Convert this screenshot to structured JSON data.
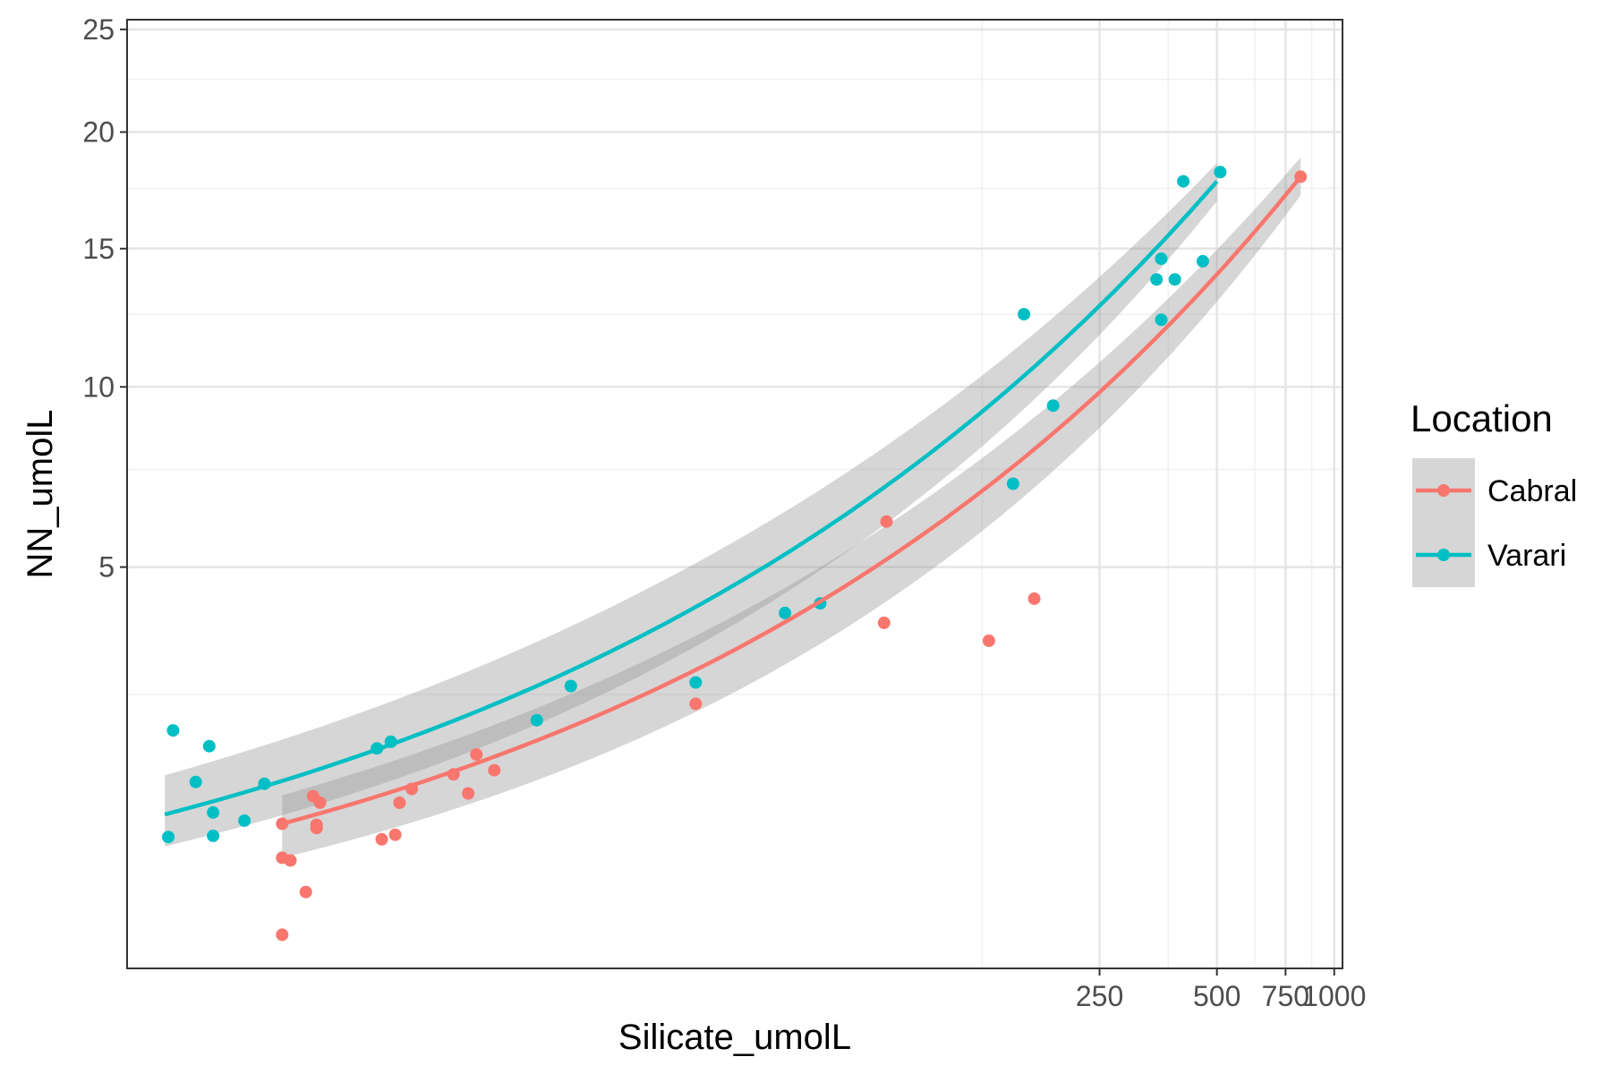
{
  "chart_data": {
    "type": "scatter",
    "xlabel": "Silicate_umolL",
    "ylabel": "NN_umolL",
    "x_scale": "log10",
    "y_scale": "sqrt",
    "xlim": [
      0.8,
      1050
    ],
    "ylim": [
      0.03,
      25.5
    ],
    "x_ticks": [
      250,
      500,
      750,
      1000
    ],
    "x_tick_labels": [
      "250",
      "500",
      "750",
      "1000"
    ],
    "y_ticks": [
      5,
      10,
      15,
      20,
      25
    ],
    "y_tick_labels": [
      "5",
      "10",
      "15",
      "20",
      "25"
    ],
    "grid": true,
    "legend": {
      "title": "Location",
      "position": "right"
    },
    "series": [
      {
        "name": "Cabral",
        "color": "#F8766D",
        "points": [
          {
            "x": 2.0,
            "y": 0.84
          },
          {
            "x": 2.0,
            "y": 0.55
          },
          {
            "x": 2.1,
            "y": 0.53
          },
          {
            "x": 2.4,
            "y": 1.12
          },
          {
            "x": 2.45,
            "y": 0.8
          },
          {
            "x": 2.45,
            "y": 0.83
          },
          {
            "x": 2.5,
            "y": 1.05
          },
          {
            "x": 2.3,
            "y": 0.32
          },
          {
            "x": 2.0,
            "y": 0.12
          },
          {
            "x": 3.6,
            "y": 0.7
          },
          {
            "x": 3.9,
            "y": 0.74
          },
          {
            "x": 4.0,
            "y": 1.05
          },
          {
            "x": 4.3,
            "y": 1.2
          },
          {
            "x": 5.5,
            "y": 1.37
          },
          {
            "x": 6.0,
            "y": 1.15
          },
          {
            "x": 6.3,
            "y": 1.62
          },
          {
            "x": 7.0,
            "y": 1.42
          },
          {
            "x": 23.0,
            "y": 2.35
          },
          {
            "x": 70.0,
            "y": 3.8
          },
          {
            "x": 71.0,
            "y": 6.1
          },
          {
            "x": 130.0,
            "y": 3.45
          },
          {
            "x": 170.0,
            "y": 4.3
          },
          {
            "x": 820.0,
            "y": 18.0
          }
        ],
        "fit_line": {
          "x": [
            2.0,
            820.0
          ],
          "y": [
            0.84,
            18.0
          ]
        },
        "confidence_band": {
          "x": [
            2.0,
            820.0
          ],
          "lower": [
            0.55,
            17.2
          ],
          "upper": [
            1.13,
            18.85
          ]
        }
      },
      {
        "name": "Varari",
        "color": "#00BFC4",
        "points": [
          {
            "x": 1.02,
            "y": 0.72
          },
          {
            "x": 1.05,
            "y": 1.95
          },
          {
            "x": 1.2,
            "y": 1.28
          },
          {
            "x": 1.3,
            "y": 1.73
          },
          {
            "x": 1.33,
            "y": 0.95
          },
          {
            "x": 1.33,
            "y": 0.73
          },
          {
            "x": 1.6,
            "y": 0.87
          },
          {
            "x": 1.8,
            "y": 1.26
          },
          {
            "x": 3.5,
            "y": 1.7
          },
          {
            "x": 3.8,
            "y": 1.79
          },
          {
            "x": 9.0,
            "y": 2.1
          },
          {
            "x": 11.0,
            "y": 2.64
          },
          {
            "x": 23.0,
            "y": 2.7
          },
          {
            "x": 39.0,
            "y": 4.0
          },
          {
            "x": 48.0,
            "y": 4.2
          },
          {
            "x": 150.0,
            "y": 7.1
          },
          {
            "x": 160.0,
            "y": 12.5
          },
          {
            "x": 190.0,
            "y": 9.4
          },
          {
            "x": 350.0,
            "y": 13.8
          },
          {
            "x": 360.0,
            "y": 14.6
          },
          {
            "x": 360.0,
            "y": 12.3
          },
          {
            "x": 390.0,
            "y": 13.8
          },
          {
            "x": 410.0,
            "y": 17.8
          },
          {
            "x": 460.0,
            "y": 14.5
          },
          {
            "x": 510.0,
            "y": 18.2
          }
        ],
        "fit_line": {
          "x": [
            1.0,
            500.0
          ],
          "y": [
            0.93,
            17.8
          ]
        },
        "confidence_band": {
          "x": [
            1.0,
            500.0
          ],
          "lower": [
            0.64,
            16.95
          ],
          "upper": [
            1.36,
            18.6
          ]
        }
      }
    ]
  }
}
